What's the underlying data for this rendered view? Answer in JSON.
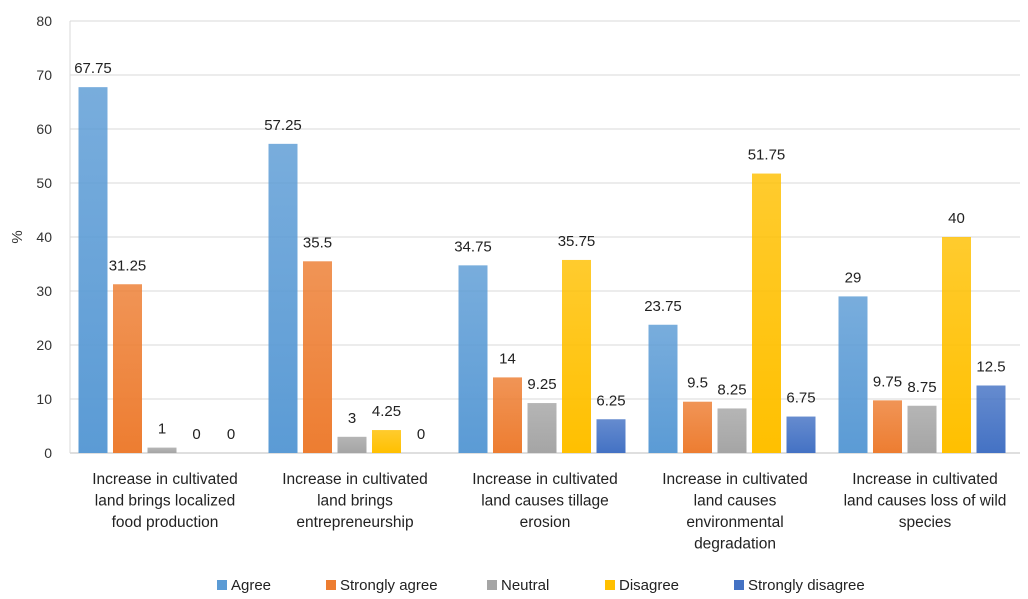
{
  "chart_data": {
    "type": "bar",
    "title": "",
    "ylabel": "%",
    "ylim": [
      0,
      80
    ],
    "yticks": [
      0,
      10,
      20,
      30,
      40,
      50,
      60,
      70,
      80
    ],
    "grid": true,
    "legend_position": "bottom",
    "categories": [
      [
        "Increase in cultivated",
        "land brings localized",
        "food production"
      ],
      [
        "Increase in cultivated",
        "land brings",
        "entrepreneurship"
      ],
      [
        "Increase in cultivated",
        "land causes tillage",
        "erosion"
      ],
      [
        "Increase in cultivated",
        "land causes",
        "environmental",
        "degradation"
      ],
      [
        "Increase in cultivated",
        "land causes loss of wild",
        "species"
      ]
    ],
    "series": [
      {
        "name": "Agree",
        "color": "#5b9bd5",
        "values": [
          67.75,
          57.25,
          34.75,
          23.75,
          29
        ]
      },
      {
        "name": "Strongly agree",
        "color": "#ed7d31",
        "values": [
          31.25,
          35.5,
          14,
          9.5,
          9.75
        ]
      },
      {
        "name": "Neutral",
        "color": "#a5a5a5",
        "values": [
          1,
          3,
          9.25,
          8.25,
          8.75
        ]
      },
      {
        "name": "Disagree",
        "color": "#ffc000",
        "values": [
          0,
          4.25,
          35.75,
          51.75,
          40
        ]
      },
      {
        "name": "Strongly disagree",
        "color": "#4472c4",
        "values": [
          0,
          0,
          6.25,
          6.75,
          12.5
        ]
      }
    ]
  }
}
